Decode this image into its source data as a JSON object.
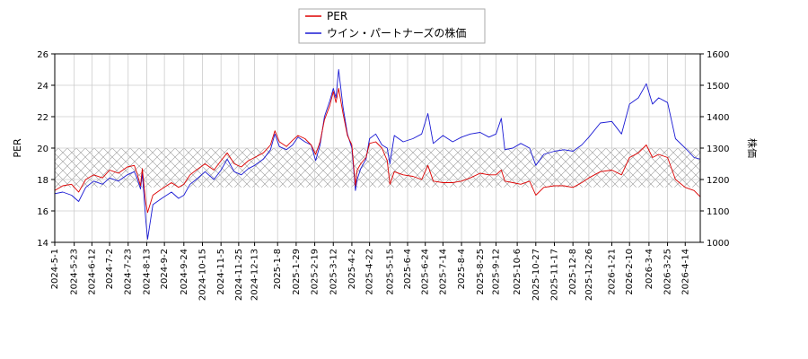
{
  "chart_data": {
    "type": "line",
    "ylabel_left": "PER",
    "ylabel_right": "株価",
    "ylim_left": [
      14,
      26
    ],
    "ylim_right": [
      1000,
      1600
    ],
    "yticks_left": [
      14,
      16,
      18,
      20,
      22,
      24,
      26
    ],
    "yticks_right": [
      1000,
      1100,
      1200,
      1300,
      1400,
      1500,
      1600
    ],
    "xlim": [
      "2024-05-01",
      "2026-05-01"
    ],
    "xticks": [
      "2024-5-1",
      "2024-5-23",
      "2024-6-12",
      "2024-7-2",
      "2024-7-23",
      "2024-8-13",
      "2024-9-2",
      "2024-9-24",
      "2024-10-15",
      "2024-11-5",
      "2024-11-25",
      "2024-12-13",
      "2025-1-8",
      "2025-1-29",
      "2025-2-19",
      "2025-3-12",
      "2025-4-2",
      "2025-4-22",
      "2025-5-15",
      "2025-6-4",
      "2025-6-24",
      "2025-7-14",
      "2025-8-4",
      "2025-8-25",
      "2025-9-12",
      "2025-10-6",
      "2025-10-27",
      "2025-11-17",
      "2025-12-8",
      "2025-12-26",
      "2026-1-21",
      "2026-2-10",
      "2026-3-4",
      "2026-3-25",
      "2026-4-14"
    ],
    "band": {
      "axis": "left",
      "from": 17.5,
      "to": 20
    },
    "grid": true,
    "legend_placement": "top-center",
    "series": [
      {
        "name": "PER",
        "axis": "left",
        "color": "#dd0000",
        "points": [
          [
            "2024-05-01",
            17.3
          ],
          [
            "2024-05-10",
            17.6
          ],
          [
            "2024-05-20",
            17.7
          ],
          [
            "2024-05-28",
            17.2
          ],
          [
            "2024-06-05",
            18.0
          ],
          [
            "2024-06-14",
            18.3
          ],
          [
            "2024-06-24",
            18.1
          ],
          [
            "2024-07-02",
            18.6
          ],
          [
            "2024-07-12",
            18.4
          ],
          [
            "2024-07-22",
            18.8
          ],
          [
            "2024-07-30",
            18.9
          ],
          [
            "2024-08-02",
            18.4
          ],
          [
            "2024-08-06",
            17.6
          ],
          [
            "2024-08-08",
            18.7
          ],
          [
            "2024-08-12",
            16.5
          ],
          [
            "2024-08-14",
            15.9
          ],
          [
            "2024-08-20",
            17.0
          ],
          [
            "2024-08-30",
            17.4
          ],
          [
            "2024-09-10",
            17.8
          ],
          [
            "2024-09-18",
            17.5
          ],
          [
            "2024-09-24",
            17.7
          ],
          [
            "2024-10-01",
            18.3
          ],
          [
            "2024-10-08",
            18.6
          ],
          [
            "2024-10-18",
            19.0
          ],
          [
            "2024-10-28",
            18.6
          ],
          [
            "2024-11-05",
            19.2
          ],
          [
            "2024-11-12",
            19.7
          ],
          [
            "2024-11-20",
            19.0
          ],
          [
            "2024-11-28",
            18.8
          ],
          [
            "2024-12-06",
            19.2
          ],
          [
            "2024-12-13",
            19.4
          ],
          [
            "2024-12-23",
            19.7
          ],
          [
            "2024-12-31",
            20.2
          ],
          [
            "2025-01-05",
            21.1
          ],
          [
            "2025-01-10",
            20.4
          ],
          [
            "2025-01-18",
            20.1
          ],
          [
            "2025-01-25",
            20.5
          ],
          [
            "2025-01-31",
            20.8
          ],
          [
            "2025-02-08",
            20.6
          ],
          [
            "2025-02-15",
            20.2
          ],
          [
            "2025-02-20",
            19.6
          ],
          [
            "2025-02-25",
            20.4
          ],
          [
            "2025-03-02",
            21.8
          ],
          [
            "2025-03-08",
            22.7
          ],
          [
            "2025-03-12",
            23.6
          ],
          [
            "2025-03-15",
            22.9
          ],
          [
            "2025-03-18",
            23.8
          ],
          [
            "2025-03-23",
            22.2
          ],
          [
            "2025-03-28",
            20.8
          ],
          [
            "2025-04-02",
            20.2
          ],
          [
            "2025-04-06",
            17.6
          ],
          [
            "2025-04-08",
            18.6
          ],
          [
            "2025-04-12",
            19.0
          ],
          [
            "2025-04-18",
            19.4
          ],
          [
            "2025-04-22",
            20.3
          ],
          [
            "2025-04-29",
            20.4
          ],
          [
            "2025-05-06",
            20.0
          ],
          [
            "2025-05-12",
            19.2
          ],
          [
            "2025-05-15",
            17.7
          ],
          [
            "2025-05-20",
            18.5
          ],
          [
            "2025-05-30",
            18.3
          ],
          [
            "2025-06-10",
            18.2
          ],
          [
            "2025-06-20",
            18.0
          ],
          [
            "2025-06-27",
            18.9
          ],
          [
            "2025-07-03",
            17.9
          ],
          [
            "2025-07-14",
            17.8
          ],
          [
            "2025-07-25",
            17.8
          ],
          [
            "2025-08-04",
            17.9
          ],
          [
            "2025-08-14",
            18.1
          ],
          [
            "2025-08-25",
            18.4
          ],
          [
            "2025-09-04",
            18.3
          ],
          [
            "2025-09-12",
            18.3
          ],
          [
            "2025-09-18",
            18.6
          ],
          [
            "2025-09-22",
            17.9
          ],
          [
            "2025-10-01",
            17.8
          ],
          [
            "2025-10-10",
            17.7
          ],
          [
            "2025-10-20",
            17.9
          ],
          [
            "2025-10-27",
            17.0
          ],
          [
            "2025-11-05",
            17.5
          ],
          [
            "2025-11-17",
            17.6
          ],
          [
            "2025-11-28",
            17.6
          ],
          [
            "2025-12-08",
            17.5
          ],
          [
            "2025-12-18",
            17.8
          ],
          [
            "2025-12-26",
            18.1
          ],
          [
            "2026-01-08",
            18.5
          ],
          [
            "2026-01-21",
            18.6
          ],
          [
            "2026-02-01",
            18.3
          ],
          [
            "2026-02-10",
            19.4
          ],
          [
            "2026-02-20",
            19.7
          ],
          [
            "2026-03-01",
            20.2
          ],
          [
            "2026-03-08",
            19.4
          ],
          [
            "2026-03-15",
            19.6
          ],
          [
            "2026-03-25",
            19.4
          ],
          [
            "2026-04-03",
            18.0
          ],
          [
            "2026-04-14",
            17.5
          ],
          [
            "2026-04-24",
            17.3
          ],
          [
            "2026-05-01",
            16.9
          ]
        ]
      },
      {
        "name": "ウイン・パートナーズの株価",
        "axis": "right",
        "color": "#1a1ad4",
        "points": [
          [
            "2024-05-01",
            1155
          ],
          [
            "2024-05-10",
            1160
          ],
          [
            "2024-05-20",
            1150
          ],
          [
            "2024-05-28",
            1130
          ],
          [
            "2024-06-05",
            1175
          ],
          [
            "2024-06-14",
            1195
          ],
          [
            "2024-06-24",
            1185
          ],
          [
            "2024-07-02",
            1205
          ],
          [
            "2024-07-12",
            1195
          ],
          [
            "2024-07-22",
            1215
          ],
          [
            "2024-07-30",
            1225
          ],
          [
            "2024-08-02",
            1205
          ],
          [
            "2024-08-06",
            1170
          ],
          [
            "2024-08-08",
            1220
          ],
          [
            "2024-08-12",
            1070
          ],
          [
            "2024-08-14",
            1010
          ],
          [
            "2024-08-20",
            1120
          ],
          [
            "2024-08-30",
            1140
          ],
          [
            "2024-09-10",
            1160
          ],
          [
            "2024-09-18",
            1140
          ],
          [
            "2024-09-24",
            1150
          ],
          [
            "2024-10-01",
            1185
          ],
          [
            "2024-10-08",
            1200
          ],
          [
            "2024-10-18",
            1225
          ],
          [
            "2024-10-28",
            1200
          ],
          [
            "2024-11-05",
            1230
          ],
          [
            "2024-11-12",
            1265
          ],
          [
            "2024-11-20",
            1225
          ],
          [
            "2024-11-28",
            1215
          ],
          [
            "2024-12-06",
            1235
          ],
          [
            "2024-12-13",
            1245
          ],
          [
            "2024-12-23",
            1265
          ],
          [
            "2024-12-31",
            1295
          ],
          [
            "2025-01-05",
            1345
          ],
          [
            "2025-01-10",
            1305
          ],
          [
            "2025-01-18",
            1295
          ],
          [
            "2025-01-25",
            1310
          ],
          [
            "2025-01-31",
            1335
          ],
          [
            "2025-02-08",
            1320
          ],
          [
            "2025-02-15",
            1310
          ],
          [
            "2025-02-20",
            1260
          ],
          [
            "2025-02-25",
            1310
          ],
          [
            "2025-03-02",
            1400
          ],
          [
            "2025-03-08",
            1450
          ],
          [
            "2025-03-12",
            1490
          ],
          [
            "2025-03-15",
            1460
          ],
          [
            "2025-03-18",
            1550
          ],
          [
            "2025-03-23",
            1430
          ],
          [
            "2025-03-28",
            1345
          ],
          [
            "2025-04-02",
            1300
          ],
          [
            "2025-04-06",
            1165
          ],
          [
            "2025-04-08",
            1200
          ],
          [
            "2025-04-12",
            1235
          ],
          [
            "2025-04-18",
            1265
          ],
          [
            "2025-04-22",
            1330
          ],
          [
            "2025-04-29",
            1345
          ],
          [
            "2025-05-06",
            1310
          ],
          [
            "2025-05-12",
            1300
          ],
          [
            "2025-05-15",
            1250
          ],
          [
            "2025-05-20",
            1340
          ],
          [
            "2025-05-30",
            1320
          ],
          [
            "2025-06-10",
            1330
          ],
          [
            "2025-06-20",
            1345
          ],
          [
            "2025-06-27",
            1410
          ],
          [
            "2025-07-03",
            1315
          ],
          [
            "2025-07-14",
            1340
          ],
          [
            "2025-07-25",
            1320
          ],
          [
            "2025-08-04",
            1335
          ],
          [
            "2025-08-14",
            1345
          ],
          [
            "2025-08-25",
            1350
          ],
          [
            "2025-09-04",
            1335
          ],
          [
            "2025-09-12",
            1345
          ],
          [
            "2025-09-18",
            1395
          ],
          [
            "2025-09-22",
            1295
          ],
          [
            "2025-10-01",
            1300
          ],
          [
            "2025-10-10",
            1315
          ],
          [
            "2025-10-20",
            1300
          ],
          [
            "2025-10-27",
            1245
          ],
          [
            "2025-11-05",
            1280
          ],
          [
            "2025-11-17",
            1290
          ],
          [
            "2025-11-28",
            1295
          ],
          [
            "2025-12-08",
            1290
          ],
          [
            "2025-12-18",
            1310
          ],
          [
            "2025-12-26",
            1335
          ],
          [
            "2026-01-08",
            1380
          ],
          [
            "2026-01-21",
            1385
          ],
          [
            "2026-02-01",
            1345
          ],
          [
            "2026-02-10",
            1440
          ],
          [
            "2026-02-20",
            1460
          ],
          [
            "2026-03-01",
            1505
          ],
          [
            "2026-03-08",
            1440
          ],
          [
            "2026-03-15",
            1460
          ],
          [
            "2026-03-25",
            1445
          ],
          [
            "2026-04-03",
            1330
          ],
          [
            "2026-04-14",
            1300
          ],
          [
            "2026-04-24",
            1270
          ],
          [
            "2026-05-01",
            1265
          ]
        ]
      }
    ]
  }
}
